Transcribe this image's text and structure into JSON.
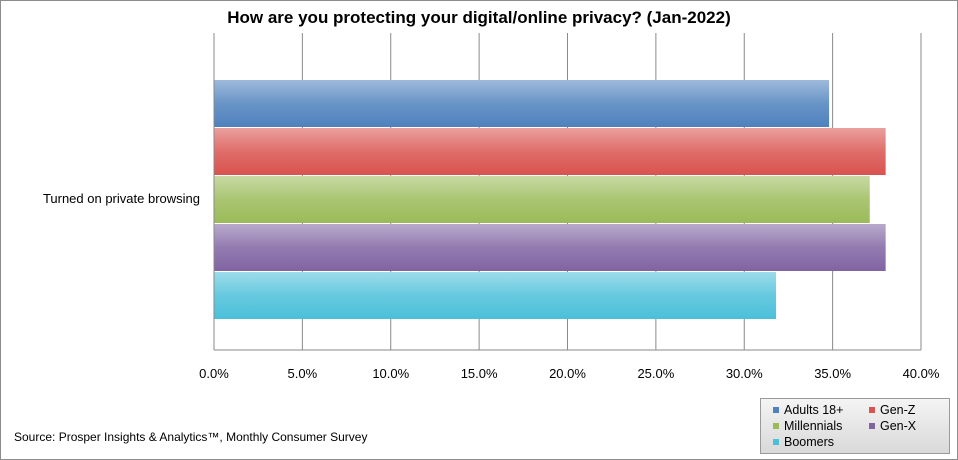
{
  "chart_data": {
    "type": "bar",
    "orientation": "horizontal",
    "title": "How are you protecting your digital/online  privacy? (Jan-2022)",
    "categories": [
      "Turned on private browsing"
    ],
    "series": [
      {
        "name": "Adults 18+",
        "values": [
          34.8
        ],
        "color": "#4f81bd"
      },
      {
        "name": "Gen-Z",
        "values": [
          38.0
        ],
        "color": "#d9534f"
      },
      {
        "name": "Millennials",
        "values": [
          37.1
        ],
        "color": "#9bbb59"
      },
      {
        "name": "Gen-X",
        "values": [
          38.0
        ],
        "color": "#8064a2"
      },
      {
        "name": "Boomers",
        "values": [
          31.8
        ],
        "color": "#4bc0d9"
      }
    ],
    "xlim": [
      0,
      40
    ],
    "xticks": [
      "0.0%",
      "5.0%",
      "10.0%",
      "15.0%",
      "20.0%",
      "25.0%",
      "30.0%",
      "35.0%",
      "40.0%"
    ],
    "grid": true,
    "legend_position": "bottom-right"
  },
  "source": "Source: Prosper Insights & Analytics™, Monthly Consumer Survey"
}
